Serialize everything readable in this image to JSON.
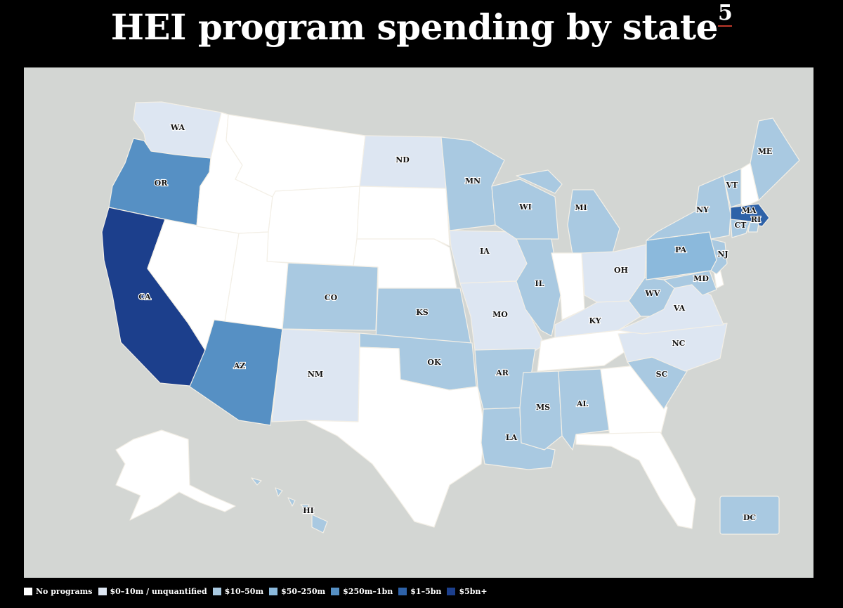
{
  "title": {
    "text": "HEI program spending by state",
    "footnote": "5"
  },
  "colors": {
    "none": "#ffffff",
    "b0": "#dde6f2",
    "b1": "#a9c9e1",
    "b2": "#8bb9dc",
    "b3": "#5690c4",
    "b4": "#2e62a8",
    "b5": "#1c3f8c",
    "background": "#d3d6d3"
  },
  "legend": [
    {
      "label": "No programs",
      "color": "#ffffff"
    },
    {
      "label": "$0–10m / unquantified",
      "color": "#dde6f2"
    },
    {
      "label": "$10–50m",
      "color": "#a9c9e1"
    },
    {
      "label": "$50–250m",
      "color": "#8bb9dc"
    },
    {
      "label": "$250m–1bn",
      "color": "#5690c4"
    },
    {
      "label": "$1–5bn",
      "color": "#2e62a8"
    },
    {
      "label": "$5bn+",
      "color": "#1c3f8c"
    }
  ],
  "states": {
    "WA": {
      "label": "WA",
      "bracket": "$0–10m / unquantified"
    },
    "OR": {
      "label": "OR",
      "bracket": "$250m–1bn"
    },
    "CA": {
      "label": "CA",
      "bracket": "$5bn+"
    },
    "ND": {
      "label": "ND",
      "bracket": "$0–10m / unquantified"
    },
    "MN": {
      "label": "MN",
      "bracket": "$10–50m"
    },
    "WI": {
      "label": "WI",
      "bracket": "$10–50m"
    },
    "MI": {
      "label": "MI",
      "bracket": "$10–50m"
    },
    "IA": {
      "label": "IA",
      "bracket": "$0–10m / unquantified"
    },
    "IL": {
      "label": "IL",
      "bracket": "$10–50m"
    },
    "OH": {
      "label": "OH",
      "bracket": "$0–10m / unquantified"
    },
    "CO": {
      "label": "CO",
      "bracket": "$10–50m"
    },
    "KS": {
      "label": "KS",
      "bracket": "$10–50m"
    },
    "MO": {
      "label": "MO",
      "bracket": "$0–10m / unquantified"
    },
    "KY": {
      "label": "KY",
      "bracket": "$0–10m / unquantified"
    },
    "WV": {
      "label": "WV",
      "bracket": "$10–50m"
    },
    "VA": {
      "label": "VA",
      "bracket": "$0–10m / unquantified"
    },
    "NC": {
      "label": "NC",
      "bracket": "$0–10m / unquantified"
    },
    "AZ": {
      "label": "AZ",
      "bracket": "$250m–1bn"
    },
    "NM": {
      "label": "NM",
      "bracket": "$0–10m / unquantified"
    },
    "OK": {
      "label": "OK",
      "bracket": "$10–50m"
    },
    "AR": {
      "label": "AR",
      "bracket": "$10–50m"
    },
    "SC": {
      "label": "SC",
      "bracket": "$10–50m"
    },
    "MS": {
      "label": "MS",
      "bracket": "$10–50m"
    },
    "AL": {
      "label": "AL",
      "bracket": "$10–50m"
    },
    "LA": {
      "label": "LA",
      "bracket": "$10–50m"
    },
    "PA": {
      "label": "PA",
      "bracket": "$50–250m"
    },
    "NY": {
      "label": "NY",
      "bracket": "$10–50m"
    },
    "NJ": {
      "label": "NJ",
      "bracket": "$10–50m"
    },
    "MD": {
      "label": "MD",
      "bracket": "$10–50m"
    },
    "VT": {
      "label": "VT",
      "bracket": "$10–50m"
    },
    "ME": {
      "label": "ME",
      "bracket": "$10–50m"
    },
    "MA": {
      "label": "MA",
      "bracket": "$1–5bn"
    },
    "RI": {
      "label": "RI",
      "bracket": "$10–50m"
    },
    "CT": {
      "label": "CT",
      "bracket": "$10–50m"
    },
    "HI": {
      "label": "HI",
      "bracket": "$10–50m"
    },
    "DC": {
      "label": "DC",
      "bracket": "$10–50m"
    }
  }
}
